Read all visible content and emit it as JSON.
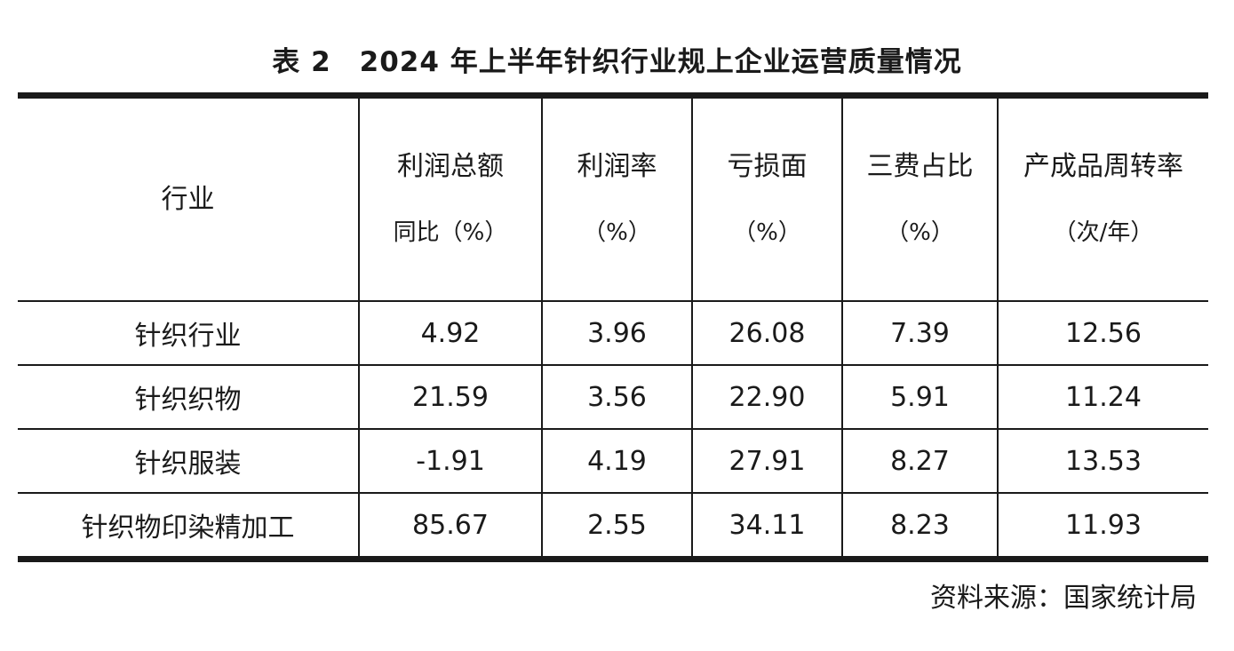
{
  "title": "表 2　2024 年上半年针织行业规上企业运营质量情况",
  "table": {
    "headers": [
      {
        "line1": "行业",
        "line2": ""
      },
      {
        "line1": "利润总额",
        "line2": "同比（%）"
      },
      {
        "line1": "利润率",
        "line2": "（%）"
      },
      {
        "line1": "亏损面",
        "line2": "（%）"
      },
      {
        "line1": "三费占比",
        "line2": "（%）"
      },
      {
        "line1": "产成品周转率",
        "line2": "（次/年）"
      }
    ],
    "rows": [
      [
        "针织行业",
        "4.92",
        "3.96",
        "26.08",
        "7.39",
        "12.56"
      ],
      [
        "针织织物",
        "21.59",
        "3.56",
        "22.90",
        "5.91",
        "11.24"
      ],
      [
        "针织服装",
        "-1.91",
        "4.19",
        "27.91",
        "8.27",
        "13.53"
      ],
      [
        "针织物印染精加工",
        "85.67",
        "2.55",
        "34.11",
        "8.23",
        "11.93"
      ]
    ]
  },
  "source": "资料来源：国家统计局"
}
